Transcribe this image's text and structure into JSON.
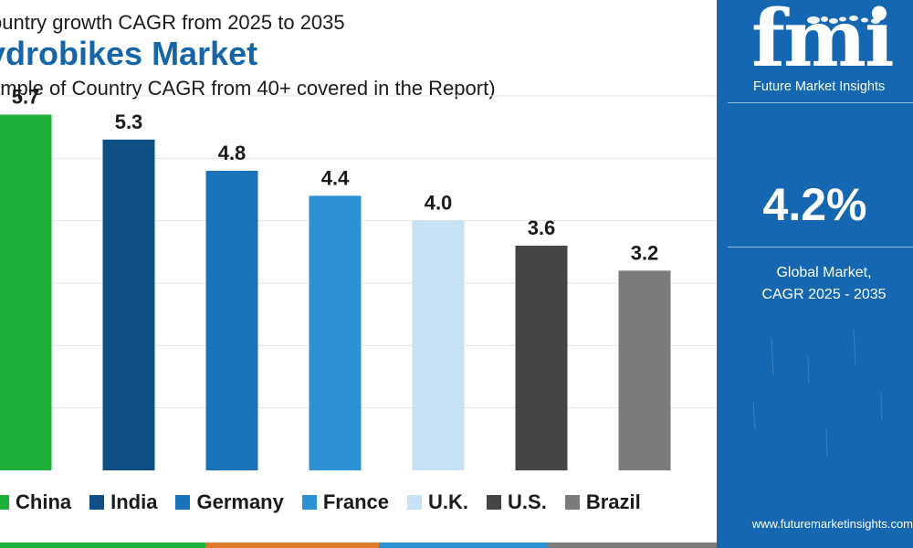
{
  "header": {
    "subtitle_top": "ountry growth CAGR from 2025 to 2035",
    "title": "ydrobikes Market",
    "note": "ample of Country CAGR from 40+ covered in the Report)"
  },
  "chart_data": {
    "type": "bar",
    "categories": [
      "China",
      "India",
      "Germany",
      "France",
      "U.K.",
      "U.S.",
      "Brazil"
    ],
    "values": [
      5.7,
      5.3,
      4.8,
      4.4,
      4.0,
      3.6,
      3.2
    ],
    "value_labels": [
      "5.7",
      "5.3",
      "4.8",
      "4.4",
      "4.0",
      "3.6",
      "3.2"
    ],
    "colors": [
      "#1db13a",
      "#0e4f86",
      "#1a72b8",
      "#2d91d6",
      "#c6e2f4",
      "#454545",
      "#7b7b7b"
    ],
    "ylim": [
      0,
      6
    ],
    "grid": true,
    "legend_position": "bottom",
    "title": "",
    "xlabel": "",
    "ylabel": ""
  },
  "sidebar": {
    "logo_text": "fmi",
    "brand_name": "Future Market Insights",
    "global_value": "4.2%",
    "caption_line1": "Global Market,",
    "caption_line2": "CAGR 2025 - 2035",
    "website": "www.futuremarketinsights.com"
  },
  "colors": {
    "brand_blue": "#1467b0",
    "title_blue": "#1565a8"
  }
}
